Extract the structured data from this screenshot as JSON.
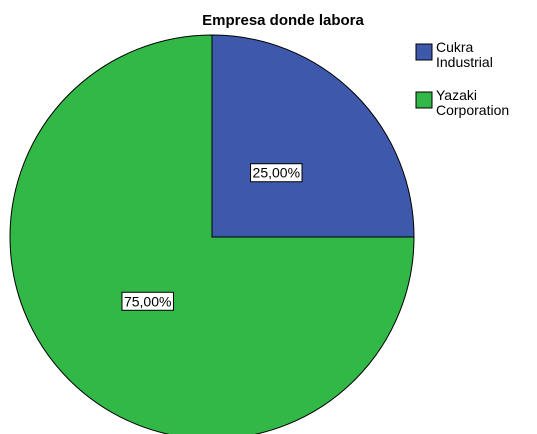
{
  "chart_data": {
    "type": "pie",
    "title": "Empresa donde labora",
    "categories": [
      "Cukra Industrial",
      "Yazaki Corporation"
    ],
    "values": [
      25,
      75
    ],
    "value_labels": [
      "25,00%",
      "75,00%"
    ],
    "colors": [
      "#3e58ac",
      "#31b847"
    ],
    "legend": "top-right"
  }
}
